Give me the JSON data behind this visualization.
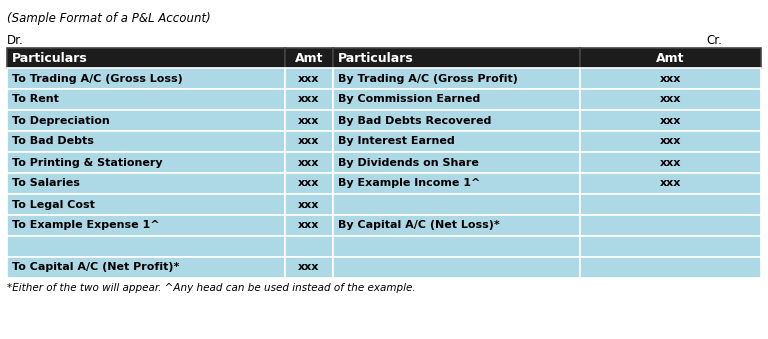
{
  "title": "(Sample Format of a P&L Account)",
  "dr_label": "Dr.",
  "cr_label": "Cr.",
  "header_bg": "#1c1c1c",
  "header_fg": "#ffffff",
  "row_bg": "#add8e6",
  "border_color": "#ffffff",
  "col_headers": [
    "Particulars",
    "Amt",
    "Particulars",
    "Amt"
  ],
  "rows": [
    [
      "To Trading A/C (Gross Loss)",
      "xxx",
      "By Trading A/C (Gross Profit)",
      "xxx"
    ],
    [
      "To Rent",
      "xxx",
      "By Commission Earned",
      "xxx"
    ],
    [
      "To Depreciation",
      "xxx",
      "By Bad Debts Recovered",
      "xxx"
    ],
    [
      "To Bad Debts",
      "xxx",
      "By Interest Earned",
      "xxx"
    ],
    [
      "To Printing & Stationery",
      "xxx",
      "By Dividends on Share",
      "xxx"
    ],
    [
      "To Salaries",
      "xxx",
      "By Example Income 1^",
      "xxx"
    ],
    [
      "To Legal Cost",
      "xxx",
      "",
      ""
    ],
    [
      "To Example Expense 1^",
      "xxx",
      "By Capital A/C (Net Loss)*",
      ""
    ],
    [
      "",
      "",
      "",
      ""
    ],
    [
      "To Capital A/C (Net Profit)*",
      "xxx",
      "",
      ""
    ]
  ],
  "footnote": "*Either of the two will appear. ^Any head can be used instead of the example.",
  "fig_bg": "#ffffff",
  "title_fontsize": 8.5,
  "label_fontsize": 8.5,
  "header_fontsize": 9,
  "row_fontsize": 8,
  "footnote_fontsize": 7.5
}
